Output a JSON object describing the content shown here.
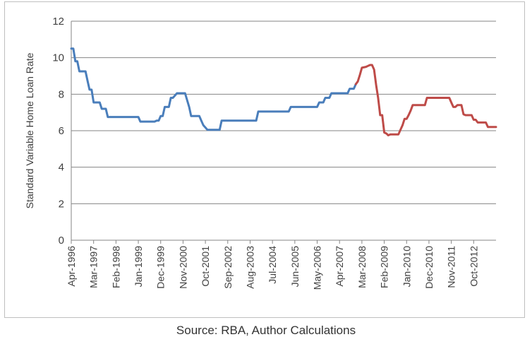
{
  "source_note": "Source: RBA, Author Calculations",
  "chart_data": {
    "type": "line",
    "title": "",
    "xlabel": "",
    "ylabel": "Standard Variable Home Loan Rate",
    "ylim": [
      0,
      12
    ],
    "y_ticks": [
      "0",
      "2",
      "4",
      "6",
      "8",
      "10",
      "12"
    ],
    "x_range": [
      "1996-04",
      "2013-09"
    ],
    "x_tick_labels": [
      "Apr-1996",
      "Mar-1997",
      "Feb-1998",
      "Jan-1999",
      "Dec-1999",
      "Nov-2000",
      "Oct-2001",
      "Sep-2002",
      "Aug-2003",
      "Jul-2004",
      "Jun-2005",
      "May-2006",
      "Apr-2007",
      "Mar-2008",
      "Feb-2009",
      "Jan-2010",
      "Dec-2010",
      "Nov-2011",
      "Oct-2012"
    ],
    "grid": "horizontal",
    "legend": "none",
    "series": [
      {
        "color": "#4a7ebb",
        "points": [
          [
            "1996-04",
            10.5
          ],
          [
            "1996-05",
            10.5
          ],
          [
            "1996-06",
            9.8
          ],
          [
            "1996-07",
            9.8
          ],
          [
            "1996-08",
            9.25
          ],
          [
            "1996-11",
            9.25
          ],
          [
            "1996-12",
            8.75
          ],
          [
            "1997-01",
            8.25
          ],
          [
            "1997-02",
            8.25
          ],
          [
            "1997-03",
            7.55
          ],
          [
            "1997-06",
            7.55
          ],
          [
            "1997-07",
            7.2
          ],
          [
            "1997-09",
            7.2
          ],
          [
            "1997-10",
            6.75
          ],
          [
            "1999-01",
            6.75
          ],
          [
            "1999-02",
            6.5
          ],
          [
            "1999-09",
            6.5
          ],
          [
            "1999-10",
            6.55
          ],
          [
            "1999-11",
            6.55
          ],
          [
            "1999-12",
            6.8
          ],
          [
            "2000-01",
            6.8
          ],
          [
            "2000-02",
            7.3
          ],
          [
            "2000-04",
            7.3
          ],
          [
            "2000-05",
            7.8
          ],
          [
            "2000-06",
            7.8
          ],
          [
            "2000-08",
            8.05
          ],
          [
            "2000-12",
            8.05
          ],
          [
            "2001-02",
            7.3
          ],
          [
            "2001-03",
            6.8
          ],
          [
            "2001-07",
            6.8
          ],
          [
            "2001-08",
            6.55
          ],
          [
            "2001-09",
            6.3
          ],
          [
            "2001-11",
            6.05
          ],
          [
            "2002-05",
            6.05
          ],
          [
            "2002-06",
            6.55
          ],
          [
            "2003-11",
            6.55
          ],
          [
            "2003-12",
            7.05
          ],
          [
            "2005-03",
            7.05
          ],
          [
            "2005-04",
            7.3
          ],
          [
            "2006-05",
            7.3
          ],
          [
            "2006-06",
            7.55
          ],
          [
            "2006-08",
            7.55
          ],
          [
            "2006-09",
            7.8
          ],
          [
            "2006-11",
            7.8
          ],
          [
            "2006-12",
            8.05
          ],
          [
            "2007-08",
            8.05
          ],
          [
            "2007-09",
            8.3
          ],
          [
            "2007-11",
            8.3
          ],
          [
            "2007-12",
            8.55
          ]
        ]
      },
      {
        "color": "#be4b48",
        "points": [
          [
            "2007-12",
            8.55
          ],
          [
            "2008-01",
            8.7
          ],
          [
            "2008-02",
            9.05
          ],
          [
            "2008-03",
            9.45
          ],
          [
            "2008-05",
            9.5
          ],
          [
            "2008-06",
            9.55
          ],
          [
            "2008-07",
            9.6
          ],
          [
            "2008-08",
            9.6
          ],
          [
            "2008-09",
            9.35
          ],
          [
            "2008-10",
            8.5
          ],
          [
            "2008-11",
            7.8
          ],
          [
            "2008-12",
            6.85
          ],
          [
            "2009-01",
            6.85
          ],
          [
            "2009-02",
            5.9
          ],
          [
            "2009-03",
            5.85
          ],
          [
            "2009-04",
            5.75
          ],
          [
            "2009-05",
            5.8
          ],
          [
            "2009-09",
            5.8
          ],
          [
            "2009-10",
            6.05
          ],
          [
            "2009-11",
            6.3
          ],
          [
            "2009-12",
            6.65
          ],
          [
            "2010-01",
            6.65
          ],
          [
            "2010-02",
            6.85
          ],
          [
            "2010-03",
            7.1
          ],
          [
            "2010-04",
            7.4
          ],
          [
            "2010-10",
            7.4
          ],
          [
            "2010-11",
            7.8
          ],
          [
            "2011-10",
            7.8
          ],
          [
            "2011-11",
            7.55
          ],
          [
            "2011-12",
            7.3
          ],
          [
            "2012-01",
            7.3
          ],
          [
            "2012-02",
            7.4
          ],
          [
            "2012-04",
            7.4
          ],
          [
            "2012-05",
            6.9
          ],
          [
            "2012-06",
            6.85
          ],
          [
            "2012-09",
            6.85
          ],
          [
            "2012-10",
            6.6
          ],
          [
            "2012-11",
            6.6
          ],
          [
            "2012-12",
            6.45
          ],
          [
            "2013-04",
            6.45
          ],
          [
            "2013-05",
            6.2
          ],
          [
            "2013-09",
            6.2
          ]
        ]
      }
    ]
  }
}
